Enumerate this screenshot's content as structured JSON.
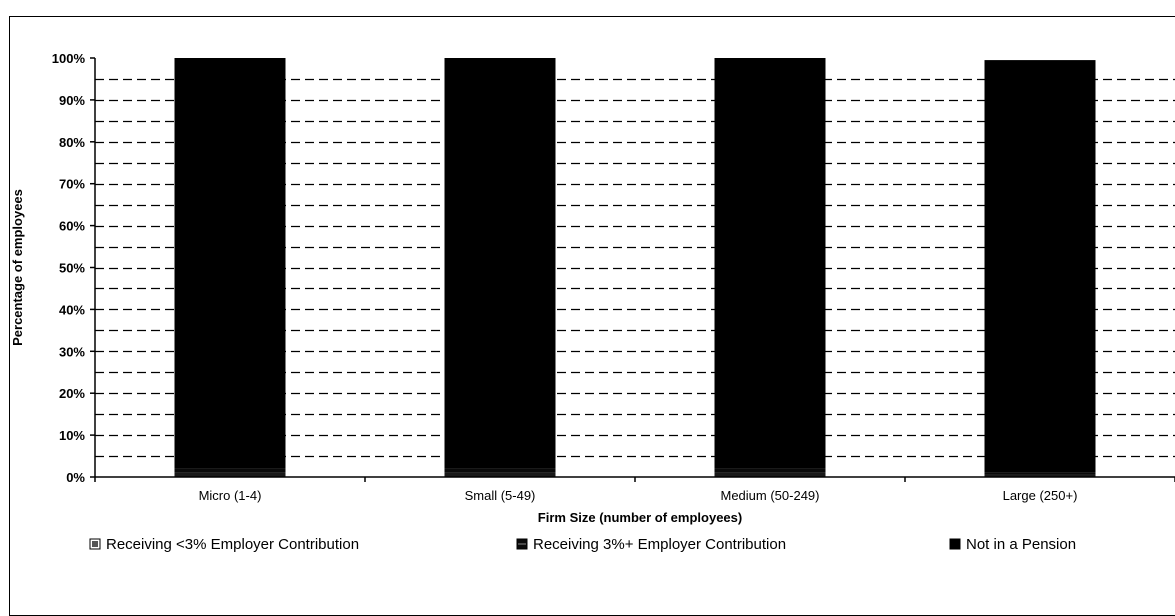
{
  "chart_data": {
    "type": "bar",
    "stacked": true,
    "xlabel": "Firm Size (number of employees)",
    "ylabel": "Percentage of employees",
    "ylim": [
      0,
      100
    ],
    "y_ticks": [
      "0%",
      "10%",
      "20%",
      "30%",
      "40%",
      "50%",
      "60%",
      "70%",
      "80%",
      "90%",
      "100%"
    ],
    "grid": "dashed",
    "legend_position": "bottom",
    "categories": [
      "Micro (1-4)",
      "Small (5-49)",
      "Medium (50-249)",
      "Large (250+)"
    ],
    "series": [
      {
        "name": "Receiving <3% Employer Contribution",
        "values": [
          1,
          1,
          1,
          0.5
        ],
        "color": "#1a1a1a",
        "legend_icon": "dotted-square"
      },
      {
        "name": "Receiving 3%+ Employer Contribution",
        "values": [
          1,
          1,
          1,
          0.5
        ],
        "color": "#0a0a0a",
        "legend_icon": "hatched-square"
      },
      {
        "name": "Not in a Pension",
        "values": [
          98,
          98,
          98,
          98.5
        ],
        "color": "#000000",
        "legend_icon": "solid-square"
      }
    ]
  }
}
